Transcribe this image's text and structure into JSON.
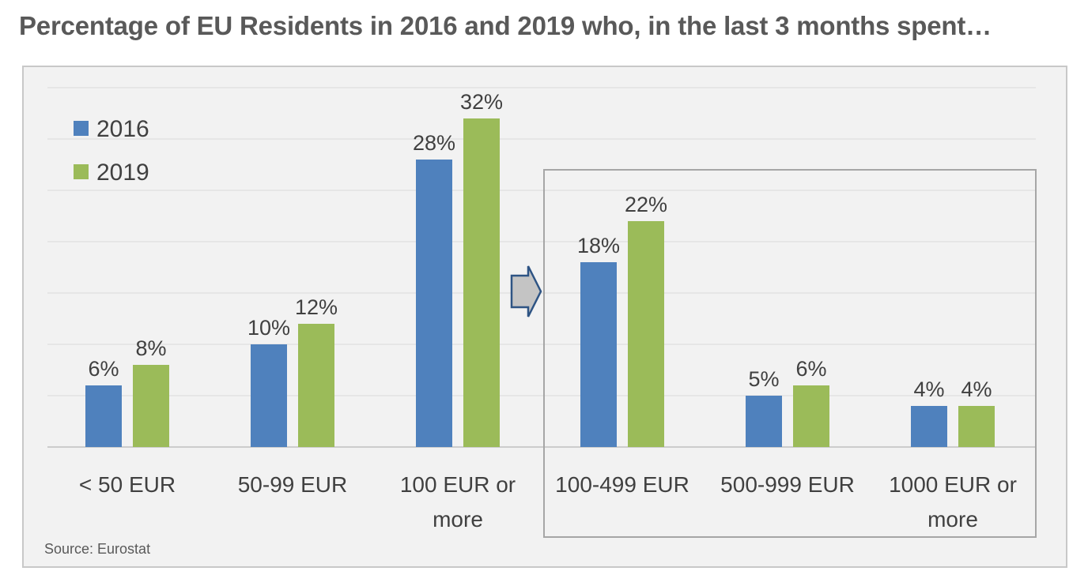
{
  "title": "Percentage of EU Residents in 2016 and 2019 who, in the last 3 months spent…",
  "source": "Source: Eurostat",
  "chart_data": {
    "type": "bar",
    "title": "Percentage of EU Residents in 2016 and 2019 who, in the last 3 months spent…",
    "categories": [
      [
        "< 50 EUR"
      ],
      [
        "50-99 EUR"
      ],
      [
        "100 EUR or",
        "more"
      ],
      [
        "100-499 EUR"
      ],
      [
        "500-999 EUR"
      ],
      [
        "1000 EUR or",
        "more"
      ]
    ],
    "series": [
      {
        "name": "2016",
        "color": "#4f81bd",
        "values": [
          6,
          10,
          28,
          18,
          5,
          4
        ],
        "labels": [
          "6%",
          "10%",
          "28%",
          "18%",
          "5%",
          "4%"
        ]
      },
      {
        "name": "2019",
        "color": "#9bbb59",
        "values": [
          8,
          12,
          32,
          22,
          6,
          4
        ],
        "labels": [
          "8%",
          "12%",
          "32%",
          "22%",
          "6%",
          "4%"
        ]
      }
    ],
    "ylim": [
      0,
      35
    ],
    "grid": true,
    "legend": "top-left",
    "annotation": "breakdown of the '100 EUR or more' category (boxed, with arrow)"
  }
}
